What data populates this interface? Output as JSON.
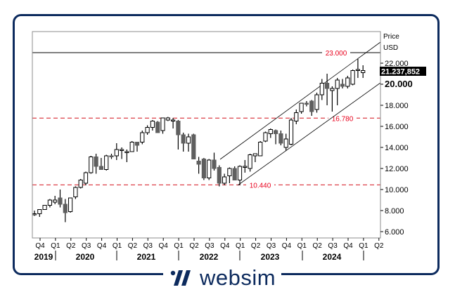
{
  "brand": {
    "name": "websim",
    "color": "#0d2b5e"
  },
  "axis": {
    "title_line1": "Price",
    "title_line2": "USD",
    "last_price_label": "21.237,852",
    "ticks": [
      {
        "value": 22,
        "label": "22.000"
      },
      {
        "value": 20,
        "label": "20.000",
        "bold": true
      },
      {
        "value": 18,
        "label": "18.000"
      },
      {
        "value": 16,
        "label": "16.000"
      },
      {
        "value": 14,
        "label": "14.000"
      },
      {
        "value": 12,
        "label": "12.000"
      },
      {
        "value": 10,
        "label": "10.000"
      },
      {
        "value": 8,
        "label": "8.000"
      },
      {
        "value": 6,
        "label": "6.000"
      }
    ]
  },
  "x_axis": {
    "quarters": [
      "Q4",
      "Q1",
      "Q2",
      "Q3",
      "Q4",
      "Q1",
      "Q2",
      "Q3",
      "Q4",
      "Q1",
      "Q2",
      "Q3",
      "Q4",
      "Q1",
      "Q2",
      "Q3",
      "Q4",
      "Q1",
      "Q2",
      "Q3",
      "Q4",
      "Q1",
      "Q2"
    ],
    "years": [
      {
        "label": "2019",
        "x": 62
      },
      {
        "label": "2020",
        "x": 121
      },
      {
        "label": "2021",
        "x": 208
      },
      {
        "label": "2022",
        "x": 297
      },
      {
        "label": "2023",
        "x": 384
      },
      {
        "label": "2024",
        "x": 472
      }
    ],
    "year_separators": [
      79,
      166,
      254,
      341,
      430,
      517
    ]
  },
  "levels": [
    {
      "value": 23.0,
      "label": "23.000",
      "style": "solid",
      "color": "#000000",
      "label_color": "#e8001c"
    },
    {
      "value": 16.78,
      "label": "16.780",
      "style": "dashed",
      "color": "#d4101c",
      "label_color": "#e8001c"
    },
    {
      "value": 10.44,
      "label": "10.440",
      "style": "dashed",
      "color": "#d4101c",
      "label_color": "#e8001c"
    }
  ],
  "colors": {
    "bear": "#5f5f5f",
    "bull": "#ffffff",
    "outline": "#000000",
    "axis": "#8c8c8c",
    "level_red": "#d4101c"
  },
  "chart_data": {
    "type": "candlestick",
    "title": "",
    "xlabel": "",
    "ylabel": "Price USD",
    "ylim": [
      5.5,
      24.5
    ],
    "interval": "monthly",
    "range": "Nov 2019 - Apr 2025",
    "grid": false,
    "last_price": 21.237852,
    "horizontal_levels": [
      23.0,
      16.78,
      10.44
    ],
    "trend_channel": {
      "upper": [
        [
          2022.75,
          13.0
        ],
        [
          2025.3,
          24.0
        ]
      ],
      "lower": [
        [
          2023.0,
          10.44
        ],
        [
          2025.3,
          20.0
        ]
      ]
    },
    "candles": [
      {
        "o": 7.6,
        "h": 8.0,
        "l": 7.5,
        "c": 7.7
      },
      {
        "o": 7.7,
        "h": 8.1,
        "l": 7.4,
        "c": 8.1
      },
      {
        "o": 8.1,
        "h": 8.5,
        "l": 8.1,
        "c": 8.5
      },
      {
        "o": 8.5,
        "h": 9.1,
        "l": 8.3,
        "c": 9.0
      },
      {
        "o": 8.8,
        "h": 9.4,
        "l": 8.6,
        "c": 9.0
      },
      {
        "o": 9.2,
        "h": 10.0,
        "l": 8.3,
        "c": 8.6
      },
      {
        "o": 8.6,
        "h": 9.1,
        "l": 6.9,
        "c": 7.8
      },
      {
        "o": 7.9,
        "h": 9.2,
        "l": 7.8,
        "c": 9.2
      },
      {
        "o": 9.3,
        "h": 10.3,
        "l": 9.1,
        "c": 10.2
      },
      {
        "o": 10.2,
        "h": 11.0,
        "l": 10.1,
        "c": 10.9
      },
      {
        "o": 10.6,
        "h": 11.7,
        "l": 10.4,
        "c": 11.6
      },
      {
        "o": 11.6,
        "h": 13.2,
        "l": 11.5,
        "c": 13.1
      },
      {
        "o": 13.1,
        "h": 13.4,
        "l": 11.5,
        "c": 12.2
      },
      {
        "o": 12.2,
        "h": 13.0,
        "l": 11.9,
        "c": 11.9
      },
      {
        "o": 11.9,
        "h": 13.3,
        "l": 11.8,
        "c": 13.2
      },
      {
        "o": 13.2,
        "h": 13.4,
        "l": 12.9,
        "c": 13.1
      },
      {
        "o": 13.2,
        "h": 14.4,
        "l": 12.8,
        "c": 13.8
      },
      {
        "o": 13.8,
        "h": 14.0,
        "l": 12.9,
        "c": 13.8
      },
      {
        "o": 13.6,
        "h": 13.8,
        "l": 12.6,
        "c": 13.6
      },
      {
        "o": 13.6,
        "h": 14.6,
        "l": 13.6,
        "c": 14.5
      },
      {
        "o": 14.5,
        "h": 14.5,
        "l": 13.6,
        "c": 14.2
      },
      {
        "o": 14.5,
        "h": 15.6,
        "l": 14.3,
        "c": 15.4
      },
      {
        "o": 15.4,
        "h": 16.1,
        "l": 15.2,
        "c": 15.9
      },
      {
        "o": 15.9,
        "h": 16.6,
        "l": 15.6,
        "c": 16.5
      },
      {
        "o": 16.4,
        "h": 16.5,
        "l": 15.4,
        "c": 15.4
      },
      {
        "o": 15.6,
        "h": 16.8,
        "l": 15.3,
        "c": 16.8
      },
      {
        "o": 16.6,
        "h": 16.9,
        "l": 16.5,
        "c": 16.8
      },
      {
        "o": 16.6,
        "h": 16.8,
        "l": 15.8,
        "c": 16.6
      },
      {
        "o": 16.5,
        "h": 16.6,
        "l": 13.8,
        "c": 15.2
      },
      {
        "o": 15.2,
        "h": 15.4,
        "l": 13.6,
        "c": 14.4
      },
      {
        "o": 14.4,
        "h": 15.3,
        "l": 13.6,
        "c": 15.0
      },
      {
        "o": 15.2,
        "h": 15.3,
        "l": 12.9,
        "c": 12.9
      },
      {
        "o": 12.7,
        "h": 13.1,
        "l": 11.5,
        "c": 12.4
      },
      {
        "o": 12.9,
        "h": 13.0,
        "l": 10.9,
        "c": 11.1
      },
      {
        "o": 11.1,
        "h": 12.9,
        "l": 10.9,
        "c": 12.8
      },
      {
        "o": 12.8,
        "h": 13.5,
        "l": 11.8,
        "c": 12.0
      },
      {
        "o": 12.1,
        "h": 12.3,
        "l": 10.3,
        "c": 10.6
      },
      {
        "o": 10.6,
        "h": 11.5,
        "l": 10.4,
        "c": 11.2
      },
      {
        "o": 11.3,
        "h": 12.1,
        "l": 10.6,
        "c": 12.0
      },
      {
        "o": 12.0,
        "h": 12.2,
        "l": 10.9,
        "c": 10.9
      },
      {
        "o": 10.9,
        "h": 12.3,
        "l": 10.4,
        "c": 12.2
      },
      {
        "o": 12.1,
        "h": 12.8,
        "l": 11.6,
        "c": 12.2
      },
      {
        "o": 12.0,
        "h": 13.4,
        "l": 11.7,
        "c": 13.3
      },
      {
        "o": 13.2,
        "h": 13.4,
        "l": 12.6,
        "c": 13.4
      },
      {
        "o": 13.2,
        "h": 14.6,
        "l": 13.2,
        "c": 14.5
      },
      {
        "o": 14.6,
        "h": 15.5,
        "l": 14.5,
        "c": 15.4
      },
      {
        "o": 15.3,
        "h": 15.8,
        "l": 14.9,
        "c": 15.7
      },
      {
        "o": 15.6,
        "h": 15.7,
        "l": 14.3,
        "c": 15.3
      },
      {
        "o": 15.3,
        "h": 15.6,
        "l": 14.2,
        "c": 14.4
      },
      {
        "o": 14.0,
        "h": 15.3,
        "l": 13.7,
        "c": 14.8
      },
      {
        "o": 14.3,
        "h": 16.8,
        "l": 14.2,
        "c": 16.6
      },
      {
        "o": 16.5,
        "h": 17.6,
        "l": 16.2,
        "c": 17.3
      },
      {
        "o": 17.4,
        "h": 18.2,
        "l": 17.2,
        "c": 18.2
      },
      {
        "o": 18.2,
        "h": 18.4,
        "l": 17.9,
        "c": 18.1
      },
      {
        "o": 18.4,
        "h": 18.5,
        "l": 17.0,
        "c": 17.4
      },
      {
        "o": 17.6,
        "h": 19.2,
        "l": 17.3,
        "c": 19.0
      },
      {
        "o": 19.0,
        "h": 20.5,
        "l": 18.5,
        "c": 20.1
      },
      {
        "o": 20.1,
        "h": 21.0,
        "l": 18.0,
        "c": 19.6
      },
      {
        "o": 19.4,
        "h": 19.8,
        "l": 17.4,
        "c": 19.6
      },
      {
        "o": 19.6,
        "h": 20.6,
        "l": 18.0,
        "c": 20.4
      },
      {
        "o": 20.0,
        "h": 20.5,
        "l": 19.6,
        "c": 19.8
      },
      {
        "o": 19.8,
        "h": 20.8,
        "l": 19.6,
        "c": 20.6
      },
      {
        "o": 20.0,
        "h": 21.4,
        "l": 19.9,
        "c": 21.3
      },
      {
        "o": 21.4,
        "h": 22.4,
        "l": 20.6,
        "c": 21.4
      },
      {
        "o": 21.1,
        "h": 21.8,
        "l": 20.6,
        "c": 21.3
      }
    ]
  }
}
